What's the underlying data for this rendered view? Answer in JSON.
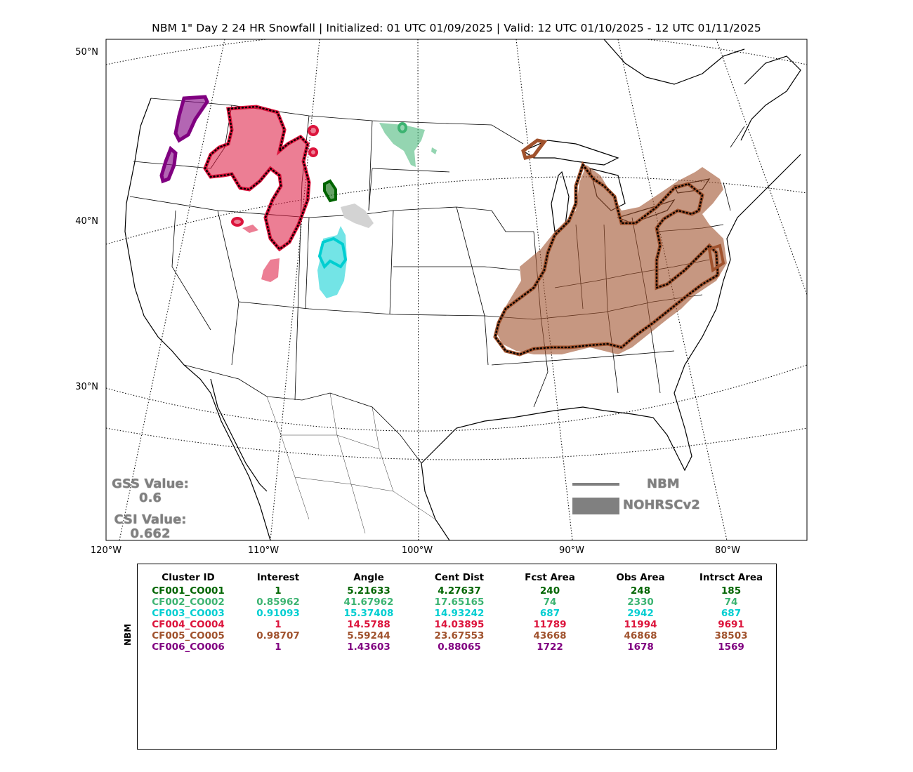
{
  "title": "NBM 1\" Day 2 24 HR Snowfall | Initialized: 01 UTC 01/09/2025 | Valid: 12 UTC 01/10/2025 - 12 UTC 01/11/2025",
  "map": {
    "lat_labels": [
      "50°N",
      "40°N",
      "30°N"
    ],
    "lon_labels": [
      "120°W",
      "110°W",
      "100°W",
      "90°W",
      "80°W"
    ]
  },
  "scores": {
    "gss_label": "GSS Value:",
    "gss_value": "0.6",
    "csi_label": "CSI Value:",
    "csi_value": "0.662"
  },
  "legend": {
    "forecast_label": "NBM",
    "observed_label": "NOHRSCv2",
    "color": "#808080"
  },
  "table": {
    "side_label": "NBM",
    "headers": [
      "Cluster ID",
      "Interest",
      "Angle",
      "Cent Dist",
      "Fcst Area",
      "Obs Area",
      "Intrsct Area"
    ],
    "rows": [
      {
        "color": "#006400",
        "cells": [
          "CF001_CO001",
          "1",
          "5.21633",
          "4.27637",
          "240",
          "248",
          "185"
        ]
      },
      {
        "color": "#3cb371",
        "cells": [
          "CF002_CO002",
          "0.85962",
          "41.67962",
          "17.65165",
          "74",
          "2330",
          "74"
        ]
      },
      {
        "color": "#00ced1",
        "cells": [
          "CF003_CO003",
          "0.91093",
          "15.37408",
          "14.93242",
          "687",
          "2942",
          "687"
        ]
      },
      {
        "color": "#dc143c",
        "cells": [
          "CF004_CO004",
          "1",
          "14.5788",
          "14.03895",
          "11789",
          "11994",
          "9691"
        ]
      },
      {
        "color": "#a0522d",
        "cells": [
          "CF005_CO005",
          "0.98707",
          "5.59244",
          "23.67553",
          "43668",
          "46868",
          "38503"
        ]
      },
      {
        "color": "#800080",
        "cells": [
          "CF006_CO006",
          "1",
          "1.43603",
          "0.88065",
          "1722",
          "1678",
          "1569"
        ]
      }
    ]
  },
  "clusters": [
    {
      "id": "CF001_CO001",
      "color": "#006400"
    },
    {
      "id": "CF002_CO002",
      "color": "#3cb371"
    },
    {
      "id": "CF003_CO003",
      "color": "#00ced1"
    },
    {
      "id": "CF004_CO004",
      "color": "#dc143c"
    },
    {
      "id": "CF005_CO005",
      "color": "#a0522d"
    },
    {
      "id": "CF006_CO006",
      "color": "#800080"
    }
  ],
  "unmatched_obs_color": "#d3d3d3"
}
